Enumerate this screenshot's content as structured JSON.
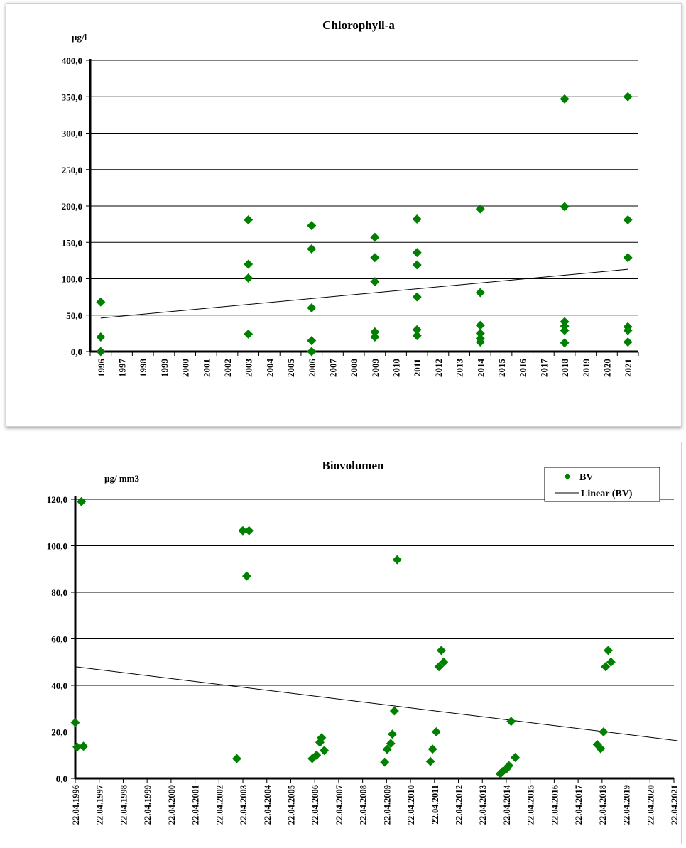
{
  "chart_data": [
    {
      "type": "scatter",
      "title": "Chlorophyll-a",
      "ylabel": "µg/l",
      "ylim": [
        0,
        400
      ],
      "yticks": [
        "0,0",
        "50,0",
        "100,0",
        "150,0",
        "200,0",
        "250,0",
        "300,0",
        "350,0",
        "400,0"
      ],
      "xticks": [
        "1996",
        "1997",
        "1998",
        "1999",
        "2000",
        "2001",
        "2002",
        "2003",
        "2004",
        "2005",
        "2006",
        "2007",
        "2008",
        "2009",
        "2010",
        "2011",
        "2012",
        "2013",
        "2014",
        "2015",
        "2016",
        "2017",
        "2018",
        "2019",
        "2020",
        "2021"
      ],
      "grid": true,
      "marker_color": "#008000",
      "trend_color": "#000000",
      "series": [
        {
          "points": [
            [
              "1996",
              68
            ],
            [
              "1996",
              20
            ],
            [
              "1996",
              0
            ],
            [
              "2003",
              181
            ],
            [
              "2003",
              120
            ],
            [
              "2003",
              101
            ],
            [
              "2003",
              24
            ],
            [
              "2006",
              173
            ],
            [
              "2006",
              141
            ],
            [
              "2006",
              60
            ],
            [
              "2006",
              15
            ],
            [
              "2006",
              0
            ],
            [
              "2009",
              157
            ],
            [
              "2009",
              129
            ],
            [
              "2009",
              96
            ],
            [
              "2009",
              27
            ],
            [
              "2009",
              20
            ],
            [
              "2011",
              182
            ],
            [
              "2011",
              136
            ],
            [
              "2011",
              119
            ],
            [
              "2011",
              75
            ],
            [
              "2011",
              30
            ],
            [
              "2011",
              22
            ],
            [
              "2014",
              196
            ],
            [
              "2014",
              81
            ],
            [
              "2014",
              36
            ],
            [
              "2014",
              25
            ],
            [
              "2014",
              18
            ],
            [
              "2014",
              13
            ],
            [
              "2018",
              347
            ],
            [
              "2018",
              199
            ],
            [
              "2018",
              41
            ],
            [
              "2018",
              35
            ],
            [
              "2018",
              29
            ],
            [
              "2018",
              12
            ],
            [
              "2021",
              350
            ],
            [
              "2021",
              181
            ],
            [
              "2021",
              129
            ],
            [
              "2021",
              34
            ],
            [
              "2021",
              29
            ],
            [
              "2021",
              13
            ]
          ],
          "trend": [
            [
              "1996",
              46
            ],
            [
              "2021",
              113
            ]
          ]
        }
      ]
    },
    {
      "type": "scatter",
      "title": "Biovolumen",
      "ylabel": "µg/ mm3",
      "ylim": [
        0,
        120
      ],
      "yticks": [
        "0,0",
        "20,0",
        "40,0",
        "60,0",
        "80,0",
        "100,0",
        "120,0"
      ],
      "xticks": [
        "22.04.1996",
        "22.04.1997",
        "22.04.1998",
        "22.04.1999",
        "22.04.2000",
        "22.04.2001",
        "22.04.2002",
        "22.04.2003",
        "22.04.2004",
        "22.04.2005",
        "22.04.2006",
        "22.04.2007",
        "22.04.2008",
        "22.04.2009",
        "22.04.2010",
        "22.04.2011",
        "22.04.2012",
        "22.04.2013",
        "22.04.2014",
        "22.04.2015",
        "22.04.2016",
        "22.04.2017",
        "22.04.2018",
        "22.04.2019",
        "22.04.2020",
        "22.04.2021"
      ],
      "grid": true,
      "legend_position": "top-right",
      "marker_color": "#008000",
      "trend_color": "#000000",
      "series": [
        {
          "name": "BV",
          "trend_name": "Linear (BV)",
          "points": [
            [
              "1996-04-22",
              24
            ],
            [
              "1996-05-20",
              13.5
            ],
            [
              "1996-07-25",
              119
            ],
            [
              "1996-08-25",
              13.8
            ],
            [
              "2003-01-20",
              8.5
            ],
            [
              "2003-04-22",
              106.5
            ],
            [
              "2003-06-20",
              87
            ],
            [
              "2003-07-25",
              106.5
            ],
            [
              "2006-03-15",
              8.5
            ],
            [
              "2006-05-20",
              10
            ],
            [
              "2006-07-10",
              15.5
            ],
            [
              "2006-08-05",
              17.5
            ],
            [
              "2006-09-15",
              12
            ],
            [
              "2009-03-25",
              7
            ],
            [
              "2009-05-01",
              12.5
            ],
            [
              "2009-06-25",
              15
            ],
            [
              "2009-07-20",
              19
            ],
            [
              "2009-08-20",
              29
            ],
            [
              "2009-10-01",
              94
            ],
            [
              "2011-02-20",
              7.3
            ],
            [
              "2011-03-25",
              12.6
            ],
            [
              "2011-05-20",
              20
            ],
            [
              "2011-07-01",
              48
            ],
            [
              "2011-08-05",
              55
            ],
            [
              "2011-09-10",
              50
            ],
            [
              "2014-01-20",
              2
            ],
            [
              "2014-03-01",
              3
            ],
            [
              "2014-04-22",
              4
            ],
            [
              "2014-06-01",
              5.5
            ],
            [
              "2014-07-05",
              24.5
            ],
            [
              "2014-09-05",
              9
            ],
            [
              "2018-02-10",
              14.5
            ],
            [
              "2018-04-01",
              12.8
            ],
            [
              "2018-05-15",
              20
            ],
            [
              "2018-06-15",
              48
            ],
            [
              "2018-07-25",
              55
            ],
            [
              "2018-09-05",
              50
            ]
          ],
          "trend": [
            [
              "1996-04-22",
              48
            ],
            [
              "2021-06-20",
              16.2
            ]
          ]
        }
      ]
    }
  ]
}
